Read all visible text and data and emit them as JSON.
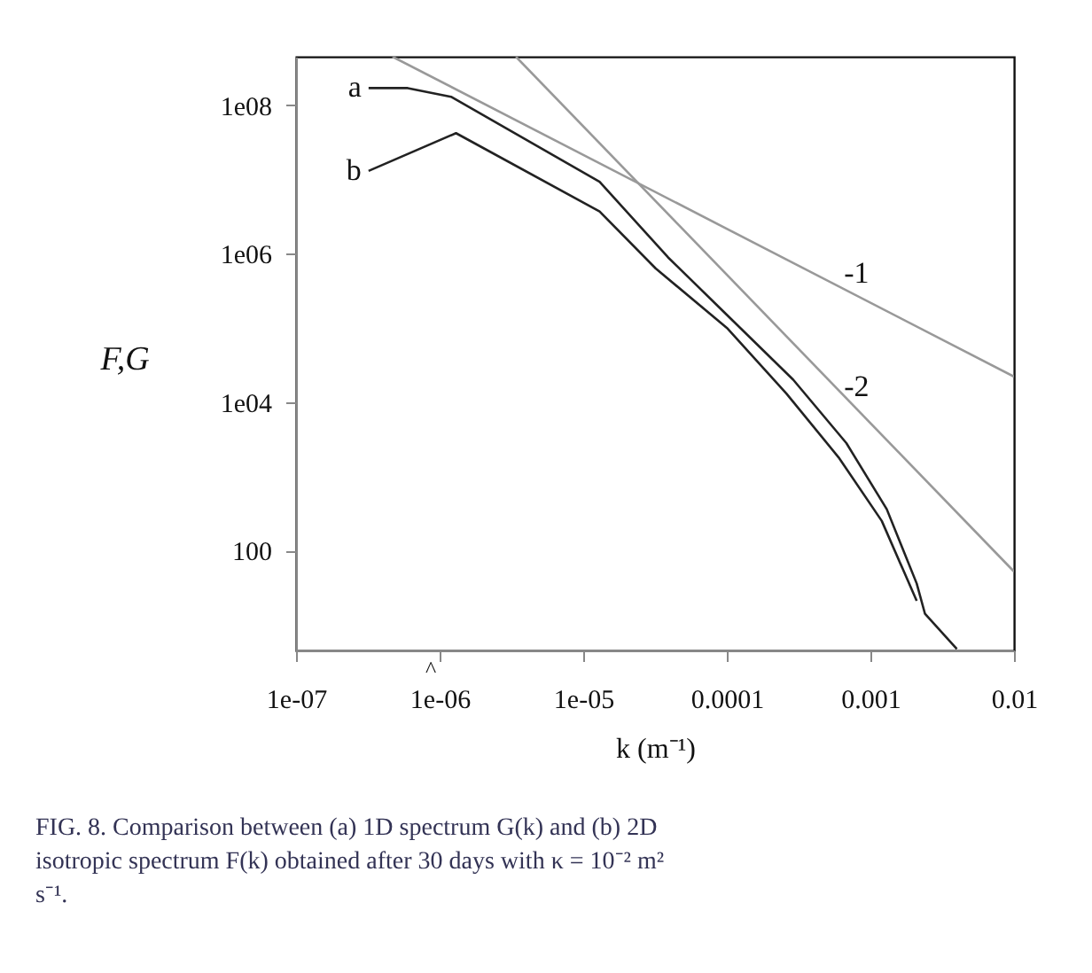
{
  "chart_data": {
    "type": "line",
    "xlabel": "k (m⁻¹)",
    "ylabel": "F,G",
    "log": "xy",
    "grid": false,
    "legend": false,
    "marker": "none",
    "line_style": "solid",
    "xlim": [
      1e-07,
      0.01
    ],
    "ylim": [
      4.5,
      450000000.0
    ],
    "xticks": [
      {
        "value": 1e-07,
        "label": "1e-07"
      },
      {
        "value": 1e-06,
        "label": "1e-06"
      },
      {
        "value": 1e-05,
        "label": "1e-05"
      },
      {
        "value": 0.0001,
        "label": "0.0001"
      },
      {
        "value": 0.001,
        "label": "0.001"
      },
      {
        "value": 0.01,
        "label": "0.01"
      }
    ],
    "yticks": [
      {
        "value": 100,
        "label": "100"
      },
      {
        "value": 10000,
        "label": "1e04"
      },
      {
        "value": 1000000,
        "label": "1e06"
      },
      {
        "value": 100000000,
        "label": "1e08"
      }
    ],
    "series": [
      {
        "name": "a",
        "color": "#222222",
        "x": [
          3.2e-07,
          6e-07,
          1.2e-06,
          1.3e-05,
          3.9e-05,
          0.0001,
          0.00029,
          0.00068,
          0.0013,
          0.0021,
          0.0024,
          0.004
        ],
        "values": [
          170000000.0,
          170000000.0,
          130000000.0,
          9300000.0,
          890000.0,
          150000.0,
          20000.0,
          2800.0,
          360,
          36,
          14,
          4.7
        ]
      },
      {
        "name": "b",
        "color": "#222222",
        "x": [
          3.2e-07,
          1.3e-06,
          1.3e-05,
          3.2e-05,
          0.0001,
          0.00026,
          0.0006,
          0.0012,
          0.0021
        ],
        "values": [
          13000000.0,
          42000000.0,
          3700000.0,
          630000.0,
          100000.0,
          13000.0,
          1800.0,
          250,
          21
        ]
      },
      {
        "color": "#999999",
        "x": [
          4.7e-07,
          0.01
        ],
        "values": [
          450000000.0,
          22000.0
        ]
      },
      {
        "color": "#999999",
        "x": [
          3.4e-06,
          0.01
        ],
        "values": [
          450000000.0,
          52
        ]
      }
    ],
    "annotations": [
      "FIG. 8. Comparison between (a) 1D spectrum G(k) and (b) 2D isotropic spectrum F(k) obtained after 30 days with κ = 10⁻² m² s⁻¹.",
      {
        "text": "-1",
        "x": 0.0008,
        "y": 275000
      },
      {
        "text": "-2",
        "x": 0.0008,
        "y": 8100
      },
      "^"
    ]
  }
}
